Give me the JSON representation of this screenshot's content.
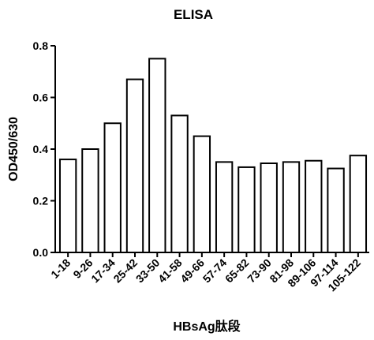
{
  "chart_data": {
    "type": "bar",
    "title": "ELISA",
    "y_label": "OD450/630",
    "x_label": "HBsAg肽段",
    "categories": [
      "1-18",
      "9-26",
      "17-34",
      "25-42",
      "33-50",
      "41-58",
      "49-66",
      "57-74",
      "65-82",
      "73-90",
      "81-98",
      "89-106",
      "97-114",
      "105-122"
    ],
    "values": [
      0.36,
      0.4,
      0.5,
      0.67,
      0.75,
      0.53,
      0.45,
      0.35,
      0.33,
      0.345,
      0.35,
      0.355,
      0.325,
      0.375
    ],
    "color": "#ffffff",
    "ylim": [
      0,
      0.8
    ],
    "yticks": [
      {
        "value": 0,
        "label": "0.0"
      },
      0.2,
      0.4,
      0.6,
      0.8
    ]
  }
}
